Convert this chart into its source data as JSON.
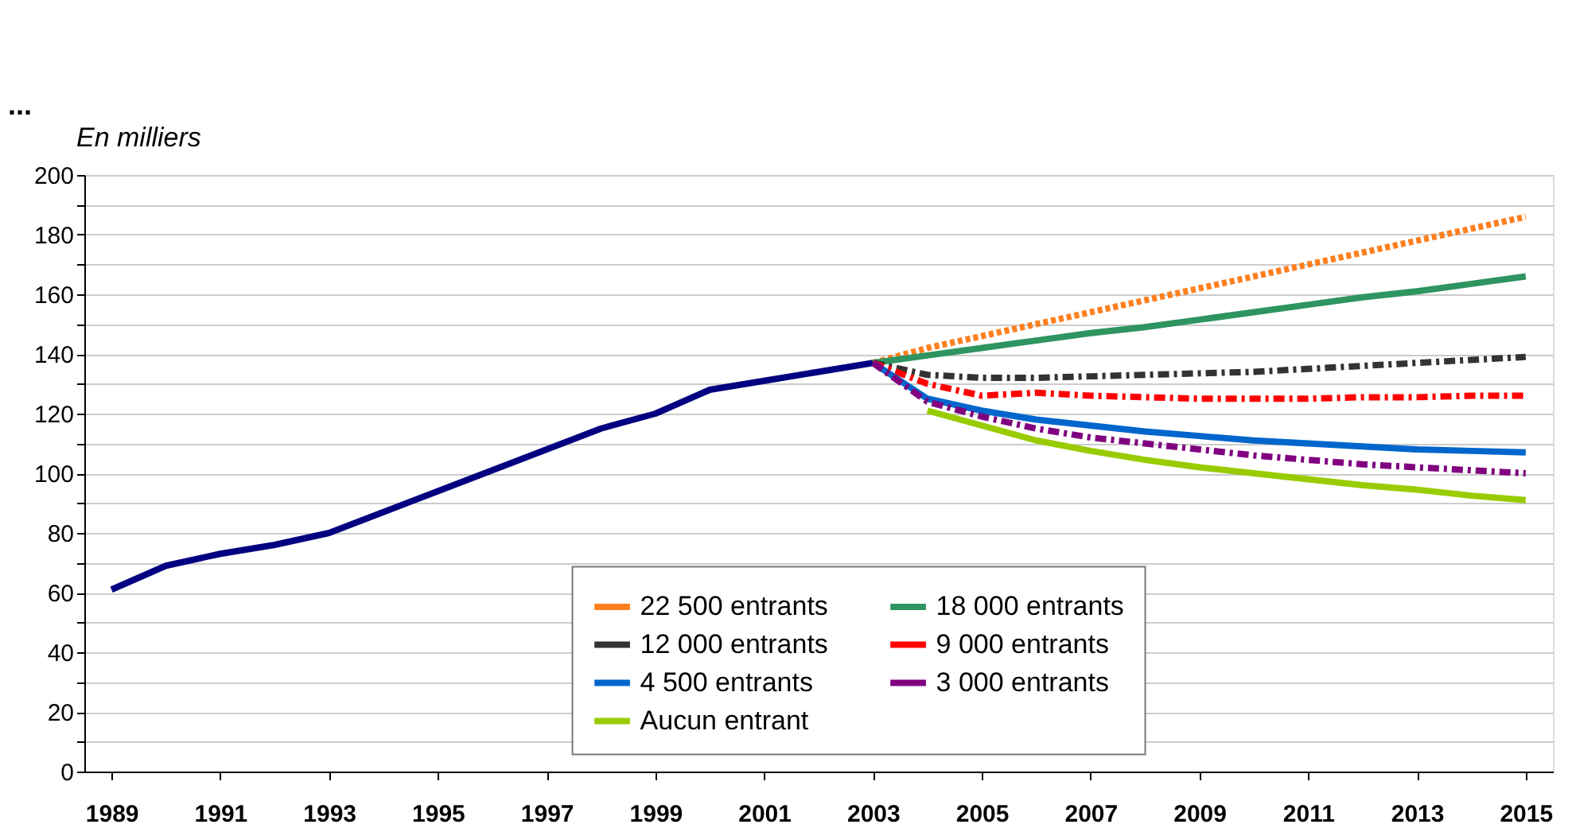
{
  "chart_data": {
    "type": "line",
    "ylabel": "En milliers",
    "annotations": [
      "..."
    ],
    "xlim": [
      1988.5,
      2015.5
    ],
    "xticks": [
      1989,
      1991,
      1993,
      1995,
      1997,
      1999,
      2001,
      2003,
      2005,
      2007,
      2009,
      2011,
      2013,
      2015
    ],
    "ylim": [
      0,
      200
    ],
    "yticks": [
      0,
      {
        "value": 10,
        "label": null
      },
      20,
      {
        "value": 30,
        "label": null
      },
      40,
      {
        "value": 50,
        "label": null
      },
      60,
      {
        "value": 70,
        "label": null
      },
      80,
      {
        "value": 90,
        "label": null
      },
      100,
      {
        "value": 110,
        "label": null
      },
      120,
      {
        "value": 130,
        "label": null
      },
      140,
      {
        "value": 150,
        "label": null
      },
      160,
      {
        "value": 170,
        "label": null
      },
      180,
      {
        "value": 190,
        "label": null
      },
      200
    ],
    "grid": "y",
    "legend": "bottom",
    "marker": "none",
    "series": [
      {
        "color": "#000080",
        "line_style": "solid",
        "x": [
          1989,
          1990,
          1991,
          1992,
          1993,
          1994,
          1995,
          1996,
          1997,
          1998,
          1999,
          2000,
          2001,
          2002,
          2003
        ],
        "values": [
          61,
          69,
          73,
          76,
          80,
          87,
          94,
          101,
          108,
          115,
          120,
          128,
          131,
          134,
          137
        ]
      },
      {
        "name": "22 500 entrants",
        "color": "#ff7f1e",
        "line_style": "dotted",
        "x": [
          2003,
          2004,
          2005,
          2006,
          2007,
          2008,
          2009,
          2010,
          2011,
          2012,
          2013,
          2014,
          2015
        ],
        "values": [
          137,
          142,
          146,
          150,
          154,
          158,
          162,
          166,
          170,
          174,
          178,
          182,
          186
        ]
      },
      {
        "name": "18 000 entrants",
        "color": "#2e9460",
        "line_style": "solid",
        "x": [
          2003,
          2004,
          2005,
          2006,
          2007,
          2008,
          2009,
          2010,
          2011,
          2012,
          2013,
          2014,
          2015
        ],
        "values": [
          137,
          139.5,
          142,
          144.5,
          147,
          149,
          151.5,
          154,
          156.5,
          159,
          161,
          163.5,
          166
        ]
      },
      {
        "name": "12 000 entrants",
        "color": "#333333",
        "line_style": "dashed",
        "x": [
          2003,
          2004,
          2005,
          2006,
          2007,
          2008,
          2009,
          2010,
          2011,
          2012,
          2013,
          2014,
          2015
        ],
        "values": [
          137,
          133,
          132,
          132,
          132.5,
          133,
          133.5,
          134,
          135,
          136,
          137,
          138,
          139
        ]
      },
      {
        "name": "9 000 entrants",
        "color": "#ff0000",
        "line_style": "dashed",
        "x": [
          2003,
          2004,
          2005,
          2006,
          2007,
          2008,
          2009,
          2010,
          2011,
          2012,
          2013,
          2014,
          2015
        ],
        "values": [
          137,
          130,
          126,
          127,
          126,
          125.5,
          125,
          125,
          125,
          125.5,
          125.5,
          126,
          126
        ]
      },
      {
        "name": "4 500 entrants",
        "color": "#0066cc",
        "line_style": "solid",
        "x": [
          2003,
          2004,
          2005,
          2006,
          2007,
          2008,
          2009,
          2010,
          2011,
          2012,
          2013,
          2014,
          2015
        ],
        "values": [
          137,
          125,
          121,
          118,
          116,
          114,
          112.5,
          111,
          110,
          109,
          108,
          107.5,
          107
        ]
      },
      {
        "name": "3 000 entrants",
        "color": "#800080",
        "line_style": "dashed",
        "x": [
          2003,
          2004,
          2005,
          2006,
          2007,
          2008,
          2009,
          2010,
          2011,
          2012,
          2013,
          2014,
          2015
        ],
        "values": [
          137,
          124,
          119,
          115,
          112,
          110,
          108,
          106,
          104.5,
          103,
          102,
          101,
          100
        ]
      },
      {
        "name": "Aucun entrant",
        "color": "#99cc00",
        "line_style": "solid",
        "x": [
          2004,
          2005,
          2006,
          2007,
          2008,
          2009,
          2010,
          2011,
          2012,
          2013,
          2014,
          2015
        ],
        "values": [
          121,
          116,
          111,
          107.5,
          104.5,
          102,
          100,
          98,
          96,
          94.5,
          92.5,
          91
        ]
      }
    ]
  }
}
